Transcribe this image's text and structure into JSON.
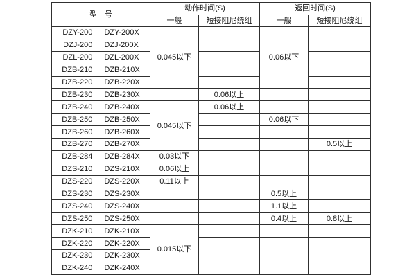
{
  "table": {
    "header": {
      "model": "型　号",
      "action_time": "动作时间(S)",
      "return_time": "返回时间(S)",
      "general": "一般",
      "short_damping": "短接阻尼绕组"
    },
    "models": [
      [
        "DZY-200",
        "DZY-200X"
      ],
      [
        "DZJ-200",
        "DZJ-200X"
      ],
      [
        "DZL-200",
        "DZL-200X"
      ],
      [
        "DZB-210",
        "DZB-210X"
      ],
      [
        "DZB-220",
        "DZB-220X"
      ],
      [
        "DZB-230",
        "DZB-230X"
      ],
      [
        "DZB-240",
        "DZB-240X"
      ],
      [
        "DZB-250",
        "DZB-250X"
      ],
      [
        "DZB-260",
        "DZB-260X"
      ],
      [
        "DZB-270",
        "DZB-270X"
      ],
      [
        "DZB-284",
        "DZB-284X"
      ],
      [
        "DZS-210",
        "DZS-210X"
      ],
      [
        "DZS-220",
        "DZS-220X"
      ],
      [
        "DZS-230",
        "DZS-230X"
      ],
      [
        "DZS-240",
        "DZS-240X"
      ],
      [
        "DZS-250",
        "DZS-250X"
      ],
      [
        "DZK-210",
        "DZK-210X"
      ],
      [
        "DZK-220",
        "DZK-220X"
      ],
      [
        "DZK-230",
        "DZK-230X"
      ],
      [
        "DZK-240",
        "DZK-240X"
      ]
    ],
    "value_columns": [
      {
        "name": "action-general",
        "cells": [
          {
            "span": 5,
            "text": "0.045以下"
          },
          {
            "span": 1,
            "text": ""
          },
          {
            "span": 4,
            "text": "0.045以下"
          },
          {
            "span": 1,
            "text": "0.03以下"
          },
          {
            "span": 1,
            "text": "0.06以上"
          },
          {
            "span": 1,
            "text": "0.11以上"
          },
          {
            "span": 1,
            "text": ""
          },
          {
            "span": 1,
            "text": ""
          },
          {
            "span": 1,
            "text": ""
          },
          {
            "span": 4,
            "text": "0.015以下"
          }
        ]
      },
      {
        "name": "action-short-damping",
        "cells": [
          {
            "span": 1,
            "text": ""
          },
          {
            "span": 1,
            "text": ""
          },
          {
            "span": 1,
            "text": ""
          },
          {
            "span": 1,
            "text": ""
          },
          {
            "span": 1,
            "text": ""
          },
          {
            "span": 1,
            "text": "0.06以上"
          },
          {
            "span": 1,
            "text": "0.06以上"
          },
          {
            "span": 1,
            "text": ""
          },
          {
            "span": 1,
            "text": ""
          },
          {
            "span": 1,
            "text": ""
          },
          {
            "span": 1,
            "text": ""
          },
          {
            "span": 1,
            "text": ""
          },
          {
            "span": 1,
            "text": ""
          },
          {
            "span": 1,
            "text": ""
          },
          {
            "span": 1,
            "text": ""
          },
          {
            "span": 1,
            "text": ""
          },
          {
            "span": 1,
            "text": ""
          },
          {
            "span": 3,
            "text": ""
          }
        ]
      },
      {
        "name": "return-general",
        "cells": [
          {
            "span": 5,
            "text": "0.06以下"
          },
          {
            "span": 1,
            "text": ""
          },
          {
            "span": 1,
            "text": ""
          },
          {
            "span": 1,
            "text": "0.06以下"
          },
          {
            "span": 1,
            "text": ""
          },
          {
            "span": 1,
            "text": ""
          },
          {
            "span": 1,
            "text": ""
          },
          {
            "span": 1,
            "text": ""
          },
          {
            "span": 1,
            "text": ""
          },
          {
            "span": 1,
            "text": "0.5以上"
          },
          {
            "span": 1,
            "text": "1.1以上"
          },
          {
            "span": 1,
            "text": "0.4以上"
          },
          {
            "span": 1,
            "text": ""
          },
          {
            "span": 3,
            "text": ""
          }
        ]
      },
      {
        "name": "return-short-damping",
        "cells": [
          {
            "span": 1,
            "text": ""
          },
          {
            "span": 1,
            "text": ""
          },
          {
            "span": 1,
            "text": ""
          },
          {
            "span": 1,
            "text": ""
          },
          {
            "span": 1,
            "text": ""
          },
          {
            "span": 1,
            "text": ""
          },
          {
            "span": 1,
            "text": ""
          },
          {
            "span": 1,
            "text": ""
          },
          {
            "span": 1,
            "text": ""
          },
          {
            "span": 1,
            "text": "0.5以上"
          },
          {
            "span": 1,
            "text": ""
          },
          {
            "span": 1,
            "text": ""
          },
          {
            "span": 1,
            "text": ""
          },
          {
            "span": 1,
            "text": ""
          },
          {
            "span": 1,
            "text": ""
          },
          {
            "span": 1,
            "text": "0.8以上"
          },
          {
            "span": 1,
            "text": ""
          },
          {
            "span": 3,
            "text": ""
          }
        ]
      }
    ]
  }
}
